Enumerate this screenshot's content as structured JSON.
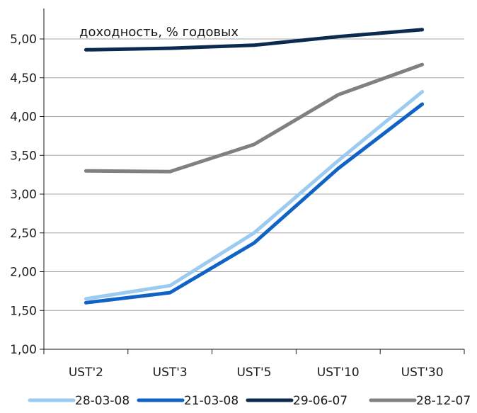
{
  "chart_data": {
    "type": "line",
    "title": "доходность, % годовых",
    "categories": [
      "UST'2",
      "UST'3",
      "UST'5",
      "UST'10",
      "UST'30"
    ],
    "series": [
      {
        "name": "28-03-08",
        "values": [
          1.65,
          1.82,
          2.5,
          3.43,
          4.32
        ],
        "color": "#9ccbf2"
      },
      {
        "name": "21-03-08",
        "values": [
          1.6,
          1.73,
          2.37,
          3.33,
          4.16
        ],
        "color": "#0f62c6"
      },
      {
        "name": "29-06-07",
        "values": [
          4.86,
          4.88,
          4.92,
          5.03,
          5.12
        ],
        "color": "#0c2a4f"
      },
      {
        "name": "28-12-07",
        "values": [
          3.3,
          3.29,
          3.64,
          4.28,
          4.67
        ],
        "color": "#808080"
      }
    ],
    "y_ticks": [
      "1,00",
      "1,50",
      "2,00",
      "2,50",
      "3,00",
      "3,50",
      "4,00",
      "4,50",
      "5,00"
    ],
    "ylim": [
      1.0,
      5.4
    ],
    "grid": true,
    "legend_position": "bottom"
  }
}
